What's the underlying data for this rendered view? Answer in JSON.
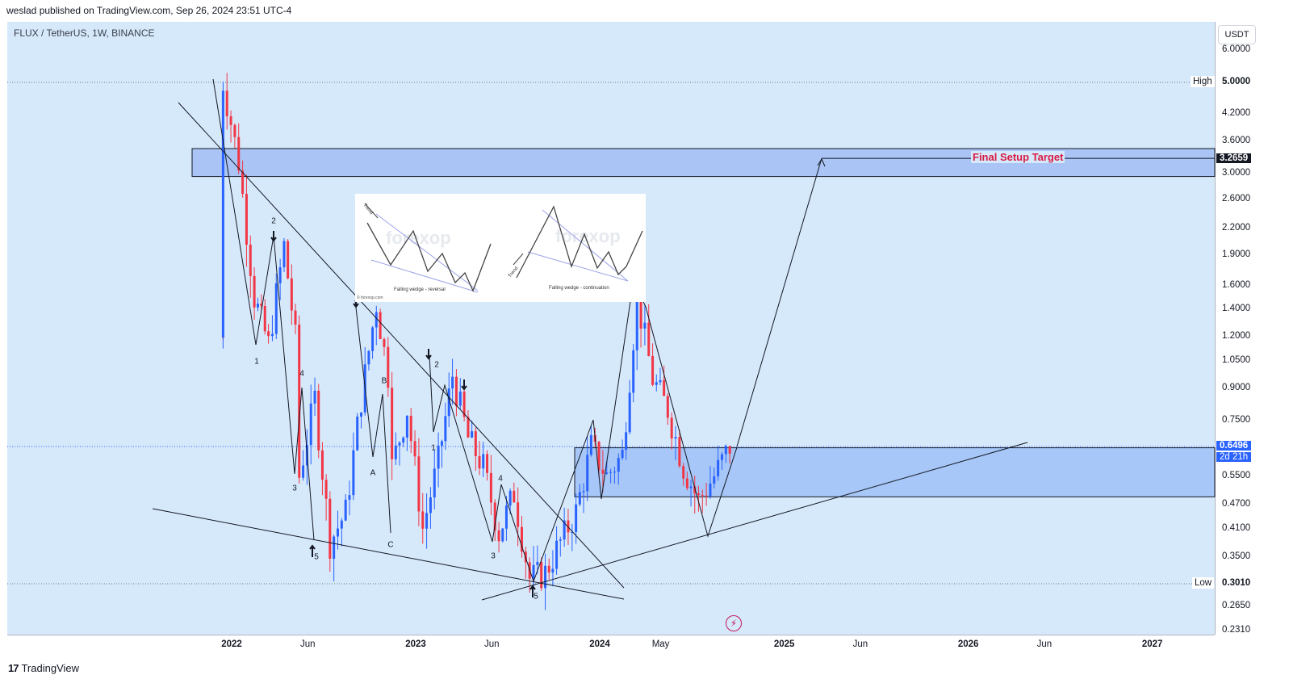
{
  "header": {
    "publisher": "weslad published on TradingView.com, Sep 26, 2024 23:51 UTC-4"
  },
  "symbol": {
    "title": "FLUX / TetherUS, 1W, BINANCE"
  },
  "price_axis": {
    "currency": "USDT",
    "ticks": [
      "6.0000",
      "5.0000",
      "4.2000",
      "3.6000",
      "3.0000",
      "2.6000",
      "2.2000",
      "1.9000",
      "1.6000",
      "1.4000",
      "1.2000",
      "1.0500",
      "0.9000",
      "0.7500",
      "0.5500",
      "0.4700",
      "0.4100",
      "0.3500",
      "0.3010",
      "0.2650",
      "0.2310"
    ]
  },
  "time_axis": {
    "labels": [
      {
        "text": "2022",
        "year": true
      },
      {
        "text": "Jun",
        "year": false
      },
      {
        "text": "2023",
        "year": true
      },
      {
        "text": "Jun",
        "year": false
      },
      {
        "text": "2024",
        "year": true
      },
      {
        "text": "May",
        "year": false
      },
      {
        "text": "2025",
        "year": true
      },
      {
        "text": "Jun",
        "year": false
      },
      {
        "text": "2026",
        "year": true
      },
      {
        "text": "Jun",
        "year": false
      },
      {
        "text": "2027",
        "year": true
      }
    ]
  },
  "badges": {
    "target_price": "3.2659",
    "last_price": "0.6496",
    "countdown": "2d 21h",
    "high_label": "High",
    "high_value": "5.0000",
    "low_label": "Low",
    "low_value": "0.3010"
  },
  "annotations": {
    "target_text": "Final Setup Target",
    "inset_reversal": "Falling wedge - reversal",
    "inset_continuation": "Falling wedge - continuation",
    "inset_trend": "Trend",
    "inset_watermark": "forexop",
    "inset_credit": "© forexop.com",
    "waves": [
      "2",
      "1",
      "4",
      "3",
      "5",
      "B",
      "A",
      "C",
      "2",
      "1",
      "4",
      "3",
      "5"
    ]
  },
  "footer": {
    "brand": "TradingView"
  },
  "colors": {
    "up": "#2962ff",
    "down": "#f23645",
    "zone": "#a6c7f7",
    "target": "#d81b44",
    "bg": "#d6e9fb"
  },
  "chart_data": {
    "type": "candlestick",
    "title": "FLUX / TetherUS, 1W, BINANCE",
    "scale": "log",
    "ylim": [
      0.231,
      6.0
    ],
    "x_range": [
      "2021-10",
      "2027-03"
    ],
    "last_price": 0.6496,
    "high": 5.0,
    "low": 0.301,
    "zones": [
      {
        "name": "Final Setup Target",
        "from": 2.95,
        "to": 3.45
      },
      {
        "from": 0.49,
        "to": 0.645
      }
    ],
    "target": 3.2659,
    "weekly_close_path": [
      {
        "t": "2021-12",
        "p": 1.2
      },
      {
        "t": "2021-12",
        "p": 5.0
      },
      {
        "t": "2022-01",
        "p": 3.2
      },
      {
        "t": "2022-02",
        "p": 1.5
      },
      {
        "t": "2022-03",
        "p": 1.15
      },
      {
        "t": "2022-04",
        "p": 2.0
      },
      {
        "t": "2022-05",
        "p": 1.0
      },
      {
        "t": "2022-05",
        "p": 0.55
      },
      {
        "t": "2022-06",
        "p": 0.85
      },
      {
        "t": "2022-07",
        "p": 0.38
      },
      {
        "t": "2022-08",
        "p": 0.45
      },
      {
        "t": "2022-09",
        "p": 0.85
      },
      {
        "t": "2022-10",
        "p": 1.45
      },
      {
        "t": "2022-11",
        "p": 0.85
      },
      {
        "t": "2022-11",
        "p": 0.58
      },
      {
        "t": "2022-12",
        "p": 0.8
      },
      {
        "t": "2023-01",
        "p": 0.41
      },
      {
        "t": "2023-02",
        "p": 0.6
      },
      {
        "t": "2023-03",
        "p": 0.97
      },
      {
        "t": "2023-04",
        "p": 0.68
      },
      {
        "t": "2023-05",
        "p": 0.58
      },
      {
        "t": "2023-06",
        "p": 0.4
      },
      {
        "t": "2023-07",
        "p": 0.5
      },
      {
        "t": "2023-08",
        "p": 0.31
      },
      {
        "t": "2023-09",
        "p": 0.32
      },
      {
        "t": "2023-10",
        "p": 0.38
      },
      {
        "t": "2023-11",
        "p": 0.45
      },
      {
        "t": "2023-12",
        "p": 0.65
      },
      {
        "t": "2024-01",
        "p": 0.55
      },
      {
        "t": "2024-02",
        "p": 0.62
      },
      {
        "t": "2024-03",
        "p": 1.5
      },
      {
        "t": "2024-04",
        "p": 0.95
      },
      {
        "t": "2024-05",
        "p": 0.8
      },
      {
        "t": "2024-06",
        "p": 0.58
      },
      {
        "t": "2024-07",
        "p": 0.48
      },
      {
        "t": "2024-08",
        "p": 0.55
      },
      {
        "t": "2024-09",
        "p": 0.6496
      }
    ],
    "projection": [
      {
        "t": "2024-09",
        "p": 0.6496
      },
      {
        "t": "2025-05",
        "p": 3.2659
      }
    ]
  }
}
